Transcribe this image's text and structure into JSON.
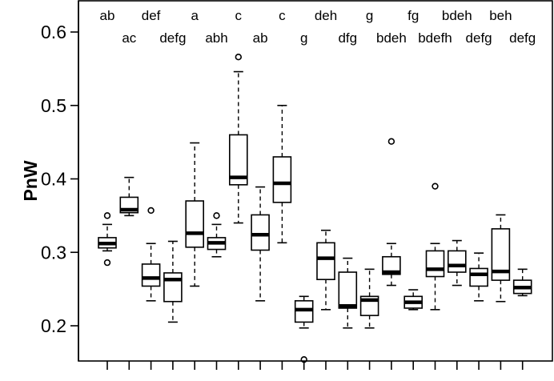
{
  "chart_data": {
    "type": "box",
    "ylabel": "PnW",
    "xlabel": "",
    "ylim": [
      0.15,
      0.64
    ],
    "y_ticks": [
      0.2,
      0.3,
      0.4,
      0.5,
      0.6
    ],
    "y_tick_labels": [
      "0.2",
      "0.3",
      "0.4",
      "0.5",
      "0.6"
    ],
    "grid": false,
    "boxes": [
      {
        "group": "ab",
        "min": 0.302,
        "q1": 0.306,
        "median": 0.312,
        "q3": 0.32,
        "max": 0.338,
        "outliers": [
          0.35,
          0.286
        ]
      },
      {
        "group": "ac",
        "min": 0.35,
        "q1": 0.354,
        "median": 0.358,
        "q3": 0.375,
        "max": 0.402,
        "outliers": []
      },
      {
        "group": "def",
        "min": 0.234,
        "q1": 0.254,
        "median": 0.265,
        "q3": 0.284,
        "max": 0.312,
        "outliers": [
          0.357
        ]
      },
      {
        "group": "defg",
        "min": 0.205,
        "q1": 0.233,
        "median": 0.263,
        "q3": 0.272,
        "max": 0.315,
        "outliers": []
      },
      {
        "group": "a",
        "min": 0.254,
        "q1": 0.307,
        "median": 0.326,
        "q3": 0.37,
        "max": 0.449,
        "outliers": []
      },
      {
        "group": "abh",
        "min": 0.294,
        "q1": 0.304,
        "median": 0.313,
        "q3": 0.32,
        "max": 0.338,
        "outliers": [
          0.35
        ]
      },
      {
        "group": "c",
        "min": 0.34,
        "q1": 0.392,
        "median": 0.402,
        "q3": 0.46,
        "max": 0.546,
        "outliers": [
          0.566
        ]
      },
      {
        "group": "ab",
        "min": 0.234,
        "q1": 0.303,
        "median": 0.324,
        "q3": 0.351,
        "max": 0.389,
        "outliers": []
      },
      {
        "group": "c",
        "min": 0.313,
        "q1": 0.368,
        "median": 0.394,
        "q3": 0.43,
        "max": 0.5,
        "outliers": []
      },
      {
        "group": "g",
        "min": 0.197,
        "q1": 0.205,
        "median": 0.222,
        "q3": 0.234,
        "max": 0.24,
        "outliers": [
          0.154
        ]
      },
      {
        "group": "deh",
        "min": 0.222,
        "q1": 0.263,
        "median": 0.292,
        "q3": 0.313,
        "max": 0.33,
        "outliers": []
      },
      {
        "group": "dfg",
        "min": 0.197,
        "q1": 0.224,
        "median": 0.227,
        "q3": 0.273,
        "max": 0.292,
        "outliers": []
      },
      {
        "group": "g",
        "min": 0.197,
        "q1": 0.214,
        "median": 0.235,
        "q3": 0.24,
        "max": 0.277,
        "outliers": []
      },
      {
        "group": "bdeh",
        "min": 0.255,
        "q1": 0.27,
        "median": 0.273,
        "q3": 0.294,
        "max": 0.312,
        "outliers": [
          0.451
        ]
      },
      {
        "group": "fg",
        "min": 0.222,
        "q1": 0.224,
        "median": 0.232,
        "q3": 0.24,
        "max": 0.249,
        "outliers": []
      },
      {
        "group": "bdefh",
        "min": 0.222,
        "q1": 0.267,
        "median": 0.277,
        "q3": 0.302,
        "max": 0.312,
        "outliers": [
          0.39
        ]
      },
      {
        "group": "bdeh",
        "min": 0.255,
        "q1": 0.273,
        "median": 0.282,
        "q3": 0.302,
        "max": 0.316,
        "outliers": []
      },
      {
        "group": "defg",
        "min": 0.234,
        "q1": 0.254,
        "median": 0.27,
        "q3": 0.278,
        "max": 0.299,
        "outliers": []
      },
      {
        "group": "beh",
        "min": 0.233,
        "q1": 0.262,
        "median": 0.274,
        "q3": 0.332,
        "max": 0.351,
        "outliers": []
      },
      {
        "group": "defg",
        "min": 0.241,
        "q1": 0.244,
        "median": 0.252,
        "q3": 0.262,
        "max": 0.277,
        "outliers": []
      }
    ]
  }
}
